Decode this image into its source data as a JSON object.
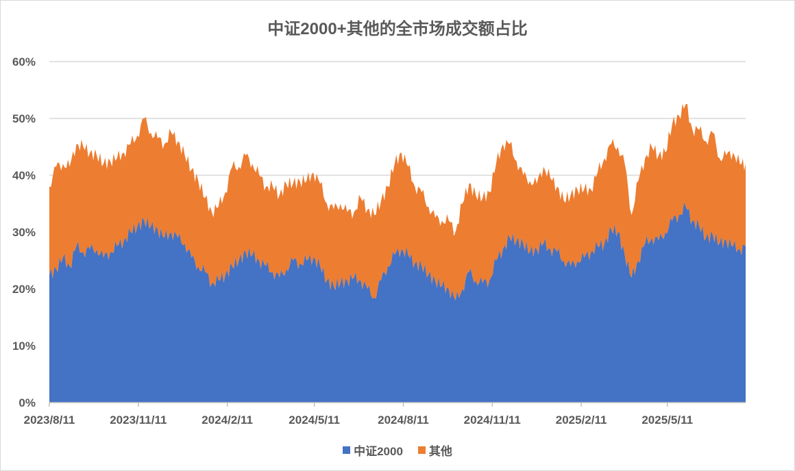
{
  "chart_data": {
    "type": "area",
    "stacked": true,
    "title": "中证2000+其他的全市场成交额占比",
    "xlabel": "",
    "ylabel": "",
    "ylim": [
      0,
      0.6
    ],
    "yticks": [
      "0%",
      "10%",
      "20%",
      "30%",
      "40%",
      "50%",
      "60%"
    ],
    "xlim": [
      "2023-08-11",
      "2025-07-31"
    ],
    "xtick_labels": [
      "2023/8/11",
      "2023/11/11",
      "2024/2/11",
      "2024/5/11",
      "2024/8/11",
      "2024/11/11",
      "2025/2/11",
      "2025/5/11"
    ],
    "xtick_dates": [
      "2023-08-11",
      "2023-11-11",
      "2024-02-11",
      "2024-05-11",
      "2024-08-11",
      "2024-11-11",
      "2025-02-11",
      "2025-05-11"
    ],
    "grid": true,
    "legend_position": "bottom",
    "x": [
      "2023-08-11",
      "2023-08-18",
      "2023-08-25",
      "2023-09-01",
      "2023-09-08",
      "2023-09-15",
      "2023-09-22",
      "2023-09-29",
      "2023-10-06",
      "2023-10-13",
      "2023-10-20",
      "2023-10-27",
      "2023-11-03",
      "2023-11-10",
      "2023-11-17",
      "2023-11-24",
      "2023-12-01",
      "2023-12-08",
      "2023-12-15",
      "2023-12-22",
      "2023-12-29",
      "2024-01-05",
      "2024-01-12",
      "2024-01-19",
      "2024-01-26",
      "2024-02-02",
      "2024-02-09",
      "2024-02-16",
      "2024-02-23",
      "2024-03-01",
      "2024-03-08",
      "2024-03-15",
      "2024-03-22",
      "2024-03-29",
      "2024-04-05",
      "2024-04-12",
      "2024-04-19",
      "2024-04-26",
      "2024-05-03",
      "2024-05-10",
      "2024-05-17",
      "2024-05-24",
      "2024-05-31",
      "2024-06-07",
      "2024-06-14",
      "2024-06-21",
      "2024-06-28",
      "2024-07-05",
      "2024-07-12",
      "2024-07-19",
      "2024-07-26",
      "2024-08-02",
      "2024-08-09",
      "2024-08-16",
      "2024-08-23",
      "2024-08-30",
      "2024-09-06",
      "2024-09-13",
      "2024-09-20",
      "2024-09-27",
      "2024-10-04",
      "2024-10-11",
      "2024-10-18",
      "2024-10-25",
      "2024-11-01",
      "2024-11-08",
      "2024-11-15",
      "2024-11-22",
      "2024-11-29",
      "2024-12-06",
      "2024-12-13",
      "2024-12-20",
      "2024-12-27",
      "2025-01-03",
      "2025-01-10",
      "2025-01-17",
      "2025-01-24",
      "2025-01-31",
      "2025-02-07",
      "2025-02-14",
      "2025-02-21",
      "2025-02-28",
      "2025-03-07",
      "2025-03-14",
      "2025-03-21",
      "2025-03-28",
      "2025-04-04",
      "2025-04-11",
      "2025-04-18",
      "2025-04-25",
      "2025-05-02",
      "2025-05-09",
      "2025-05-16",
      "2025-05-23",
      "2025-05-30",
      "2025-06-06",
      "2025-06-13",
      "2025-06-20",
      "2025-06-27",
      "2025-07-04",
      "2025-07-11",
      "2025-07-18",
      "2025-07-25",
      "2025-07-31"
    ],
    "series": [
      {
        "name": "中证2000",
        "color": "#4472c4",
        "values": [
          0.225,
          0.235,
          0.255,
          0.24,
          0.275,
          0.265,
          0.27,
          0.27,
          0.255,
          0.265,
          0.275,
          0.285,
          0.3,
          0.31,
          0.32,
          0.31,
          0.305,
          0.29,
          0.3,
          0.29,
          0.28,
          0.255,
          0.24,
          0.23,
          0.21,
          0.215,
          0.225,
          0.24,
          0.25,
          0.265,
          0.26,
          0.25,
          0.24,
          0.23,
          0.22,
          0.235,
          0.25,
          0.245,
          0.25,
          0.255,
          0.24,
          0.215,
          0.205,
          0.21,
          0.215,
          0.22,
          0.215,
          0.2,
          0.185,
          0.215,
          0.24,
          0.26,
          0.27,
          0.26,
          0.245,
          0.24,
          0.225,
          0.215,
          0.205,
          0.2,
          0.18,
          0.2,
          0.23,
          0.215,
          0.21,
          0.215,
          0.25,
          0.27,
          0.29,
          0.285,
          0.28,
          0.265,
          0.27,
          0.28,
          0.27,
          0.265,
          0.25,
          0.24,
          0.25,
          0.255,
          0.265,
          0.275,
          0.28,
          0.305,
          0.3,
          0.26,
          0.22,
          0.25,
          0.28,
          0.29,
          0.285,
          0.3,
          0.32,
          0.33,
          0.345,
          0.32,
          0.31,
          0.29,
          0.295,
          0.28,
          0.285,
          0.275,
          0.27,
          0.275
        ]
      },
      {
        "name": "其他",
        "color": "#ed7d31",
        "values": [
          0.155,
          0.18,
          0.165,
          0.175,
          0.18,
          0.185,
          0.17,
          0.165,
          0.165,
          0.16,
          0.155,
          0.155,
          0.155,
          0.16,
          0.18,
          0.165,
          0.16,
          0.165,
          0.175,
          0.17,
          0.155,
          0.155,
          0.15,
          0.13,
          0.125,
          0.13,
          0.145,
          0.175,
          0.165,
          0.17,
          0.16,
          0.15,
          0.14,
          0.15,
          0.145,
          0.15,
          0.135,
          0.145,
          0.14,
          0.15,
          0.145,
          0.135,
          0.135,
          0.14,
          0.12,
          0.115,
          0.145,
          0.14,
          0.145,
          0.14,
          0.14,
          0.16,
          0.17,
          0.155,
          0.135,
          0.13,
          0.12,
          0.11,
          0.115,
          0.12,
          0.12,
          0.15,
          0.155,
          0.15,
          0.15,
          0.155,
          0.17,
          0.185,
          0.165,
          0.14,
          0.12,
          0.125,
          0.115,
          0.135,
          0.125,
          0.115,
          0.105,
          0.125,
          0.125,
          0.12,
          0.11,
          0.13,
          0.15,
          0.15,
          0.15,
          0.16,
          0.11,
          0.14,
          0.15,
          0.16,
          0.15,
          0.14,
          0.17,
          0.175,
          0.18,
          0.16,
          0.17,
          0.17,
          0.18,
          0.15,
          0.15,
          0.165,
          0.15,
          0.145
        ]
      }
    ]
  }
}
